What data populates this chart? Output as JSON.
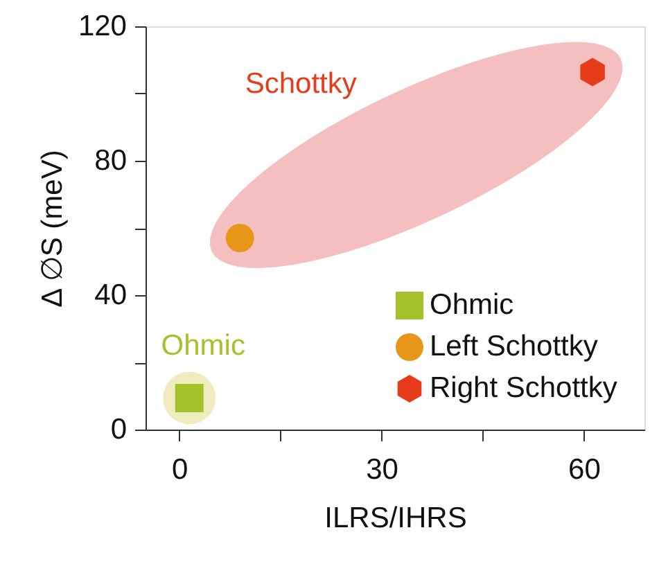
{
  "chart_data": {
    "type": "scatter",
    "xlabel": "ILRS/IHRS",
    "ylabel": "Δ ∅S (meV)",
    "xlim": [
      -5,
      69
    ],
    "xticks": [
      0,
      {
        "value": 15,
        "label": null
      },
      30,
      {
        "value": 45,
        "label": null
      },
      60
    ],
    "ylim": [
      0,
      120
    ],
    "yticks": [
      0,
      {
        "value": 20,
        "label": null
      },
      40,
      {
        "value": 60,
        "label": null
      },
      80,
      {
        "value": 100,
        "label": null
      },
      120
    ],
    "grid": false,
    "legend": "bottom right",
    "annotations": [
      "Schottky",
      "Ohmic"
    ],
    "series": [
      {
        "name": "Ohmic",
        "color": "#a5c22a",
        "marker": "square",
        "x": [
          1.5
        ],
        "values": [
          9.4
        ]
      },
      {
        "name": "Left Schottky",
        "color": "#e8961a",
        "marker": "circle",
        "x": [
          9.0
        ],
        "values": [
          57
        ]
      },
      {
        "name": "Right Schottky",
        "color": "#e63c1a",
        "x": [
          61.3
        ],
        "values": [
          106.4
        ]
      }
    ]
  }
}
